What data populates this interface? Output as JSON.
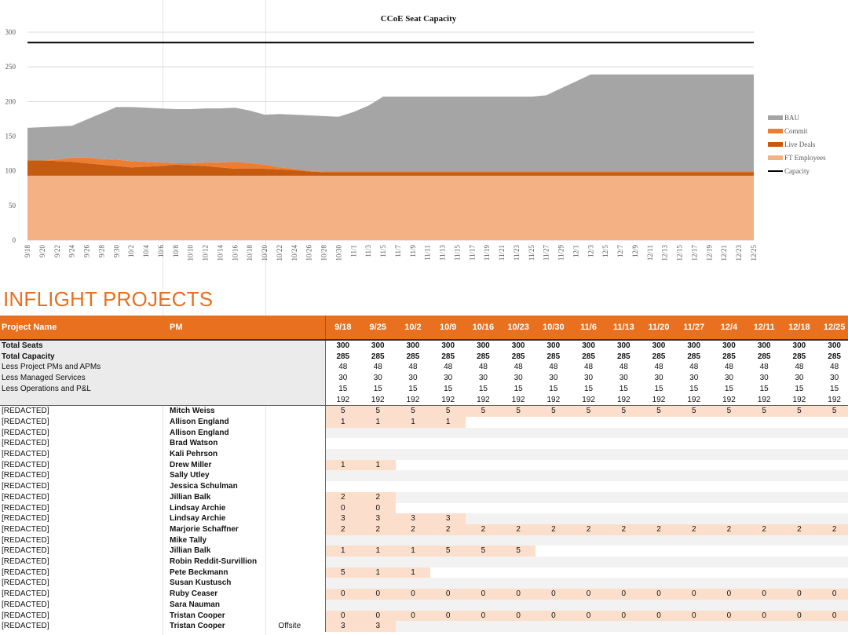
{
  "chart_data": {
    "type": "area",
    "title": "CCoE Seat Capacity",
    "x": [
      "9/18",
      "9/20",
      "9/22",
      "9/24",
      "9/26",
      "9/28",
      "9/30",
      "10/2",
      "10/4",
      "10/6",
      "10/8",
      "10/10",
      "10/12",
      "10/14",
      "10/16",
      "10/18",
      "10/20",
      "10/22",
      "10/24",
      "10/26",
      "10/28",
      "10/30",
      "11/1",
      "11/3",
      "11/5",
      "11/7",
      "11/9",
      "11/11",
      "11/13",
      "11/15",
      "11/17",
      "11/19",
      "11/21",
      "11/23",
      "11/25",
      "11/27",
      "11/29",
      "12/1",
      "12/3",
      "12/5",
      "12/7",
      "12/9",
      "12/11",
      "12/13",
      "12/15",
      "12/17",
      "12/19",
      "12/21",
      "12/23",
      "12/25"
    ],
    "ylim": [
      0,
      300
    ],
    "yticks": [
      0,
      50,
      100,
      150,
      200,
      250,
      300
    ],
    "legend_position": "right",
    "series": [
      {
        "name": "FT Employees",
        "color": "#f4b183",
        "values": [
          93,
          93,
          93,
          93,
          93,
          93,
          93,
          93,
          93,
          93,
          93,
          93,
          93,
          93,
          93,
          93,
          93,
          93,
          93,
          93,
          93,
          93,
          93,
          93,
          93,
          93,
          93,
          93,
          93,
          93,
          93,
          93,
          93,
          93,
          93,
          93,
          93,
          93,
          93,
          93,
          93,
          93,
          93,
          93,
          93,
          93,
          93,
          93,
          93,
          93
        ]
      },
      {
        "name": "Live Deals",
        "color": "#c55a11",
        "values": [
          22,
          22,
          21,
          20,
          18,
          16,
          14,
          12,
          13,
          14,
          16,
          15,
          14,
          12,
          10,
          10,
          10,
          9,
          8,
          6,
          5,
          5,
          5,
          5,
          5,
          5,
          5,
          5,
          5,
          5,
          5,
          5,
          5,
          5,
          5,
          5,
          5,
          5,
          5,
          5,
          5,
          5,
          5,
          5,
          5,
          5,
          5,
          5,
          5,
          5
        ]
      },
      {
        "name": "Commit",
        "color": "#ed7d31",
        "values": [
          0,
          0,
          2,
          6,
          8,
          8,
          9,
          9,
          7,
          5,
          2,
          3,
          5,
          7,
          10,
          8,
          6,
          3,
          2,
          1,
          1,
          1,
          1,
          1,
          1,
          1,
          1,
          1,
          1,
          1,
          1,
          1,
          1,
          1,
          1,
          1,
          1,
          1,
          1,
          1,
          1,
          1,
          1,
          1,
          1,
          1,
          1,
          1,
          1,
          1
        ]
      },
      {
        "name": "BAU",
        "color": "#a5a5a5",
        "values": [
          47,
          48,
          48,
          46,
          55,
          66,
          76,
          78,
          78,
          78,
          78,
          78,
          78,
          78,
          78,
          76,
          72,
          77,
          78,
          80,
          80,
          79,
          86,
          95,
          108,
          108,
          108,
          108,
          108,
          108,
          108,
          108,
          108,
          108,
          108,
          110,
          120,
          130,
          140,
          140,
          140,
          140,
          140,
          140,
          140,
          140,
          140,
          140,
          140,
          140
        ]
      },
      {
        "name": "Capacity",
        "color": "#000000",
        "values": [
          285,
          285,
          285,
          285,
          285,
          285,
          285,
          285,
          285,
          285,
          285,
          285,
          285,
          285,
          285,
          285,
          285,
          285,
          285,
          285,
          285,
          285,
          285,
          285,
          285,
          285,
          285,
          285,
          285,
          285,
          285,
          285,
          285,
          285,
          285,
          285,
          285,
          285,
          285,
          285,
          285,
          285,
          285,
          285,
          285,
          285,
          285,
          285,
          285,
          285
        ]
      }
    ],
    "legend": [
      "BAU",
      "Commit",
      "Live Deals",
      "FT Employees",
      "Capacity"
    ]
  },
  "colors": {
    "accent": "#e8701e",
    "shade": "#fbdfcc",
    "gray": "#f2f2f2"
  },
  "section_title": "INFLIGHT PROJECTS",
  "table": {
    "headers": {
      "name": "Project Name",
      "pm": "PM"
    },
    "weeks": [
      "9/18",
      "9/25",
      "10/2",
      "10/9",
      "10/16",
      "10/23",
      "10/30",
      "11/6",
      "11/13",
      "11/20",
      "11/27",
      "12/4",
      "12/11",
      "12/18",
      "12/25"
    ],
    "summary": [
      {
        "label": "Total Seats",
        "bold": true,
        "values": [
          "300",
          "300",
          "300",
          "300",
          "300",
          "300",
          "300",
          "300",
          "300",
          "300",
          "300",
          "300",
          "300",
          "300",
          "300"
        ]
      },
      {
        "label": "Total Capacity",
        "bold": true,
        "values": [
          "285",
          "285",
          "285",
          "285",
          "285",
          "285",
          "285",
          "285",
          "285",
          "285",
          "285",
          "285",
          "285",
          "285",
          "285"
        ]
      },
      {
        "label": "Less Project PMs and APMs",
        "bold": false,
        "values": [
          "48",
          "48",
          "48",
          "48",
          "48",
          "48",
          "48",
          "48",
          "48",
          "48",
          "48",
          "48",
          "48",
          "48",
          "48"
        ]
      },
      {
        "label": "Less Managed Services",
        "bold": false,
        "values": [
          "30",
          "30",
          "30",
          "30",
          "30",
          "30",
          "30",
          "30",
          "30",
          "30",
          "30",
          "30",
          "30",
          "30",
          "30"
        ]
      },
      {
        "label": "Less Operations and P&L",
        "bold": false,
        "values": [
          "15",
          "15",
          "15",
          "15",
          "15",
          "15",
          "15",
          "15",
          "15",
          "15",
          "15",
          "15",
          "15",
          "15",
          "15"
        ]
      },
      {
        "label": "",
        "bold": false,
        "values": [
          "192",
          "192",
          "192",
          "192",
          "192",
          "192",
          "192",
          "192",
          "192",
          "192",
          "192",
          "192",
          "192",
          "192",
          "192"
        ]
      }
    ],
    "projects": [
      {
        "name": "[REDACTED]",
        "pm": "Mitch Weiss",
        "note": "",
        "values": [
          "5",
          "5",
          "5",
          "5",
          "5",
          "5",
          "5",
          "5",
          "5",
          "5",
          "5",
          "5",
          "5",
          "5",
          "5"
        ]
      },
      {
        "name": "[REDACTED]",
        "pm": "Allison England",
        "note": "",
        "values": [
          "1",
          "1",
          "1",
          "1",
          "",
          "",
          "",
          "",
          "",
          "",
          "",
          "",
          "",
          "",
          ""
        ]
      },
      {
        "name": "[REDACTED]",
        "pm": "Allison England",
        "note": "",
        "values": [
          "",
          "",
          "",
          "",
          "",
          "",
          "",
          "",
          "",
          "",
          "",
          "",
          "",
          "",
          ""
        ]
      },
      {
        "name": "[REDACTED]",
        "pm": "Brad Watson",
        "note": "",
        "values": [
          "",
          "",
          "",
          "",
          "",
          "",
          "",
          "",
          "",
          "",
          "",
          "",
          "",
          "",
          ""
        ]
      },
      {
        "name": "[REDACTED]",
        "pm": "Kali Pehrson",
        "note": "",
        "values": [
          "",
          "",
          "",
          "",
          "",
          "",
          "",
          "",
          "",
          "",
          "",
          "",
          "",
          "",
          ""
        ]
      },
      {
        "name": "[REDACTED]",
        "pm": "Drew Miller",
        "note": "",
        "values": [
          "1",
          "1",
          "",
          "",
          "",
          "",
          "",
          "",
          "",
          "",
          "",
          "",
          "",
          "",
          ""
        ]
      },
      {
        "name": "[REDACTED]",
        "pm": "Sally Utley",
        "note": "",
        "values": [
          "",
          "",
          "",
          "",
          "",
          "",
          "",
          "",
          "",
          "",
          "",
          "",
          "",
          "",
          ""
        ]
      },
      {
        "name": "[REDACTED]",
        "pm": "Jessica Schulman",
        "note": "",
        "values": [
          "",
          "",
          "",
          "",
          "",
          "",
          "",
          "",
          "",
          "",
          "",
          "",
          "",
          "",
          ""
        ]
      },
      {
        "name": "[REDACTED]",
        "pm": "Jillian Balk",
        "note": "",
        "values": [
          "2",
          "2",
          "",
          "",
          "",
          "",
          "",
          "",
          "",
          "",
          "",
          "",
          "",
          "",
          ""
        ]
      },
      {
        "name": "[REDACTED]",
        "pm": "Lindsay Archie",
        "note": "",
        "values": [
          "0",
          "0",
          "",
          "",
          "",
          "",
          "",
          "",
          "",
          "",
          "",
          "",
          "",
          "",
          ""
        ]
      },
      {
        "name": "[REDACTED]",
        "pm": "Lindsay Archie",
        "note": "",
        "values": [
          "3",
          "3",
          "3",
          "3",
          "",
          "",
          "",
          "",
          "",
          "",
          "",
          "",
          "",
          "",
          ""
        ]
      },
      {
        "name": "[REDACTED]",
        "pm": "Marjorie Schaffner",
        "note": "",
        "values": [
          "2",
          "2",
          "2",
          "2",
          "2",
          "2",
          "2",
          "2",
          "2",
          "2",
          "2",
          "2",
          "2",
          "2",
          "2"
        ]
      },
      {
        "name": "[REDACTED]",
        "pm": "Mike Tally",
        "note": "",
        "values": [
          "",
          "",
          "",
          "",
          "",
          "",
          "",
          "",
          "",
          "",
          "",
          "",
          "",
          "",
          ""
        ]
      },
      {
        "name": "[REDACTED]",
        "pm": "Jillian Balk",
        "note": "",
        "values": [
          "1",
          "1",
          "1",
          "5",
          "5",
          "5",
          "",
          "",
          "",
          "",
          "",
          "",
          "",
          "",
          ""
        ]
      },
      {
        "name": "[REDACTED]",
        "pm": "Robin Reddit-Survillion",
        "note": "",
        "values": [
          "",
          "",
          "",
          "",
          "",
          "",
          "",
          "",
          "",
          "",
          "",
          "",
          "",
          "",
          ""
        ]
      },
      {
        "name": "[REDACTED]",
        "pm": "Pete Beckmann",
        "note": "",
        "values": [
          "5",
          "1",
          "1",
          "",
          "",
          "",
          "",
          "",
          "",
          "",
          "",
          "",
          "",
          "",
          ""
        ]
      },
      {
        "name": "[REDACTED]",
        "pm": "Susan Kustusch",
        "note": "",
        "values": [
          "",
          "",
          "",
          "",
          "",
          "",
          "",
          "",
          "",
          "",
          "",
          "",
          "",
          "",
          ""
        ]
      },
      {
        "name": "[REDACTED]",
        "pm": "Ruby Ceaser",
        "note": "",
        "values": [
          "0",
          "0",
          "0",
          "0",
          "0",
          "0",
          "0",
          "0",
          "0",
          "0",
          "0",
          "0",
          "0",
          "0",
          "0"
        ]
      },
      {
        "name": "[REDACTED]",
        "pm": "Sara Nauman",
        "note": "",
        "values": [
          "",
          "",
          "",
          "",
          "",
          "",
          "",
          "",
          "",
          "",
          "",
          "",
          "",
          "",
          ""
        ]
      },
      {
        "name": "[REDACTED]",
        "pm": "Tristan Cooper",
        "note": "",
        "values": [
          "0",
          "0",
          "0",
          "0",
          "0",
          "0",
          "0",
          "0",
          "0",
          "0",
          "0",
          "0",
          "0",
          "0",
          "0"
        ]
      },
      {
        "name": "[REDACTED]",
        "pm": "Tristan Cooper",
        "note": "Offsite",
        "values": [
          "3",
          "3",
          "",
          "",
          "",
          "",
          "",
          "",
          "",
          "",
          "",
          "",
          "",
          "",
          ""
        ]
      }
    ]
  }
}
